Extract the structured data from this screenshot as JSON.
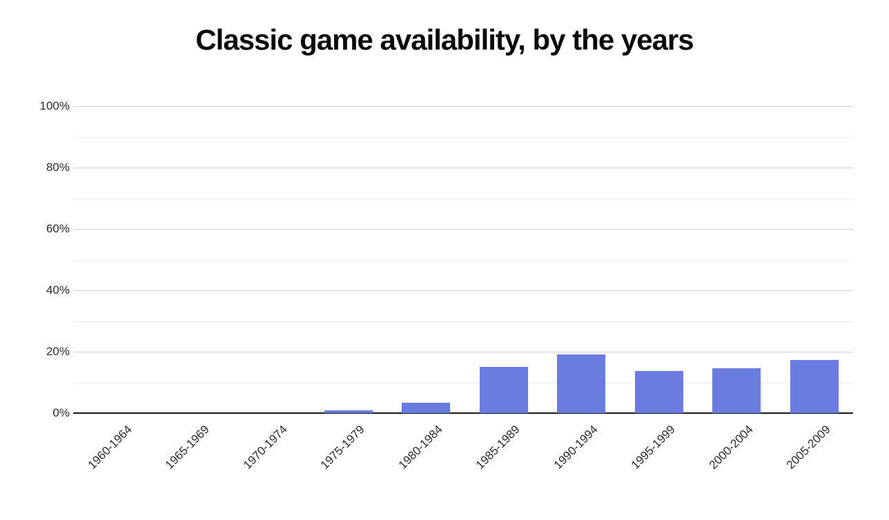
{
  "title": "Classic game availability, by the years",
  "chart_data": {
    "type": "bar",
    "title": "Classic game availability, by the years",
    "categories": [
      "1960-1964",
      "1965-1969",
      "1970-1974",
      "1975-1979",
      "1980-1984",
      "1985-1989",
      "1990-1994",
      "1995-1999",
      "2000-2004",
      "2005-2009"
    ],
    "values": [
      0,
      0,
      0,
      0.8,
      3.4,
      15,
      19,
      13.8,
      14.7,
      17.3
    ],
    "xlabel": "",
    "ylabel": "",
    "ylim": [
      0,
      100
    ],
    "y_major_ticks": [
      {
        "value": 100,
        "label": "100%"
      },
      {
        "value": 80,
        "label": "80%"
      },
      {
        "value": 60,
        "label": "60%"
      },
      {
        "value": 40,
        "label": "40%"
      },
      {
        "value": 20,
        "label": "20%"
      },
      {
        "value": 0,
        "label": "0%"
      }
    ],
    "y_minor_tick_values": [
      90,
      70,
      50,
      30,
      10
    ],
    "grid": "horizontal",
    "legend": "none",
    "colors": {
      "bar": "#6b7ce0",
      "axis_line": "#1a1a1a",
      "grid_major": "#cfcfcf",
      "grid_minor": "#ececec",
      "title_text": "#0a0a0a",
      "tick_text": "#2b2b2b"
    }
  }
}
